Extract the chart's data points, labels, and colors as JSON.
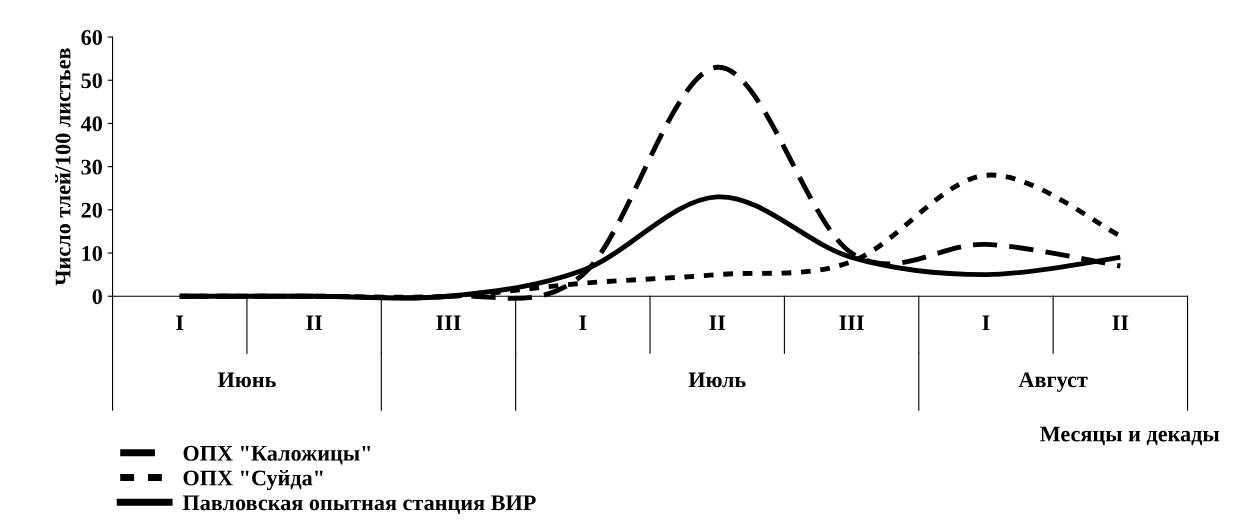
{
  "chart_data": {
    "type": "line",
    "categories": [
      "I",
      "II",
      "III",
      "I",
      "II",
      "III",
      "I",
      "II"
    ],
    "annotations": [
      "Июнь",
      "Июль",
      "Август"
    ],
    "xlabel": "Месяцы и декады",
    "ylabel": "Число тлей/100 листьев",
    "ylim": [
      0,
      60
    ],
    "yticks": [
      0,
      10,
      20,
      30,
      40,
      50,
      60
    ],
    "grid": false,
    "legend": "bottom left",
    "marker": "none",
    "series": [
      {
        "name": "ОПХ \"Каложицы\"",
        "color": "#000000",
        "line_style": "dashed",
        "values": [
          0,
          0,
          0,
          5,
          53,
          10,
          12,
          7
        ]
      },
      {
        "name": "ОПХ \"Суйда\"",
        "color": "#000000",
        "line_style": "dotted",
        "values": [
          0,
          0,
          0,
          3,
          5,
          8,
          28,
          14
        ]
      },
      {
        "name": "Павловская опытная станция ВИР",
        "color": "#000000",
        "line_style": "solid",
        "values": [
          0,
          0,
          0,
          6,
          23,
          9,
          5,
          9
        ]
      }
    ]
  }
}
